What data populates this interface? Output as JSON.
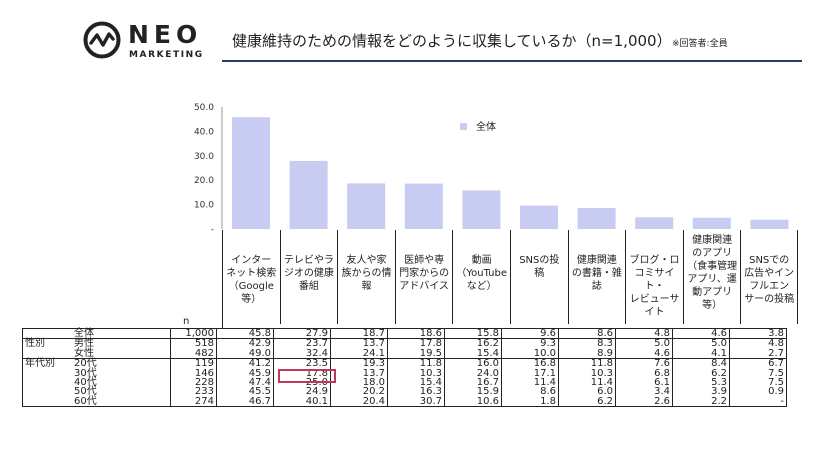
{
  "brand": {
    "word": "NEO",
    "sub": "MARKETING"
  },
  "title": "健康維持のための情報をどのように収集しているか（n=1,000）",
  "title_note": "※回答者:全員",
  "colors": {
    "bar": "#c8ccf2",
    "accent": "#2e3a6e",
    "highlight": "#c0395a"
  },
  "chart_data": {
    "type": "bar",
    "categories": [
      "インターネット検索（Google等）",
      "テレビやラジオの健康番組",
      "友人や家族からの情報",
      "医師や専門家からのアドバイス",
      "動画（YouTubeなど）",
      "SNSの投稿",
      "健康関連の書籍・雑誌",
      "ブログ・口コミサイト・レビューサイト",
      "健康関連のアプリ（食事管理アプリ、運動アプリ等）",
      "SNSでの広告やインフルエンサーの投稿"
    ],
    "category_lines": [
      [
        "インター",
        "ネット検索",
        "（Google",
        "等）"
      ],
      [
        "テレビやラ",
        "ジオの健康",
        "番組"
      ],
      [
        "友人や家",
        "族からの情",
        "報"
      ],
      [
        "医師や専",
        "門家からの",
        "アドバイス"
      ],
      [
        "動画",
        "（YouTube",
        "など）"
      ],
      [
        "SNSの投",
        "稿"
      ],
      [
        "健康関連",
        "の書籍・雑",
        "誌"
      ],
      [
        "ブログ・ロ",
        "コミサイト・",
        "レビューサ",
        "イト"
      ],
      [
        "健康関連",
        "のアプリ",
        "（食事管理",
        "アプリ、運",
        "動アプリ",
        "等）"
      ],
      [
        "SNSでの",
        "広告やイン",
        "フルエン",
        "サーの投稿"
      ]
    ],
    "series": [
      {
        "name": "全体",
        "values": [
          45.8,
          27.9,
          18.7,
          18.6,
          15.8,
          9.6,
          8.6,
          4.8,
          4.6,
          3.8
        ]
      }
    ],
    "ylim": [
      0,
      50
    ],
    "yticks": [
      "50.0",
      "40.0",
      "30.0",
      "20.0",
      "10.0",
      "-"
    ],
    "legend_position": "top-right",
    "grid": false
  },
  "table": {
    "n_header": "n",
    "rows": [
      {
        "group": "",
        "label": "全体",
        "n": "1,000",
        "values": [
          "45.8",
          "27.9",
          "18.7",
          "18.6",
          "15.8",
          "9.6",
          "8.6",
          "4.8",
          "4.6",
          "3.8"
        ]
      },
      {
        "group": "性別",
        "label": "男性",
        "n": "518",
        "values": [
          "42.9",
          "23.7",
          "13.7",
          "17.8",
          "16.2",
          "9.3",
          "8.3",
          "5.0",
          "5.0",
          "4.8"
        ]
      },
      {
        "group": "",
        "label": "女性",
        "n": "482",
        "values": [
          "49.0",
          "32.4",
          "24.1",
          "19.5",
          "15.4",
          "10.0",
          "8.9",
          "4.6",
          "4.1",
          "2.7"
        ]
      },
      {
        "group": "年代別",
        "label": "20代",
        "n": "119",
        "values": [
          "41.2",
          "23.5",
          "19.3",
          "11.8",
          "16.0",
          "16.8",
          "11.8",
          "7.6",
          "8.4",
          "6.7"
        ]
      },
      {
        "group": "",
        "label": "30代",
        "n": "146",
        "values": [
          "45.9",
          "17.8",
          "13.7",
          "10.3",
          "24.0",
          "17.1",
          "10.3",
          "6.8",
          "6.2",
          "7.5"
        ]
      },
      {
        "group": "",
        "label": "40代",
        "n": "228",
        "values": [
          "47.4",
          "25.0",
          "18.0",
          "15.4",
          "16.7",
          "11.4",
          "11.4",
          "6.1",
          "5.3",
          "7.5"
        ]
      },
      {
        "group": "",
        "label": "50代",
        "n": "233",
        "values": [
          "45.5",
          "24.9",
          "20.2",
          "16.3",
          "15.9",
          "8.6",
          "6.0",
          "3.4",
          "3.9",
          "0.9"
        ]
      },
      {
        "group": "",
        "label": "60代",
        "n": "274",
        "values": [
          "46.7",
          "40.1",
          "20.4",
          "30.7",
          "10.6",
          "1.8",
          "6.2",
          "2.6",
          "2.2",
          "-"
        ]
      }
    ]
  }
}
